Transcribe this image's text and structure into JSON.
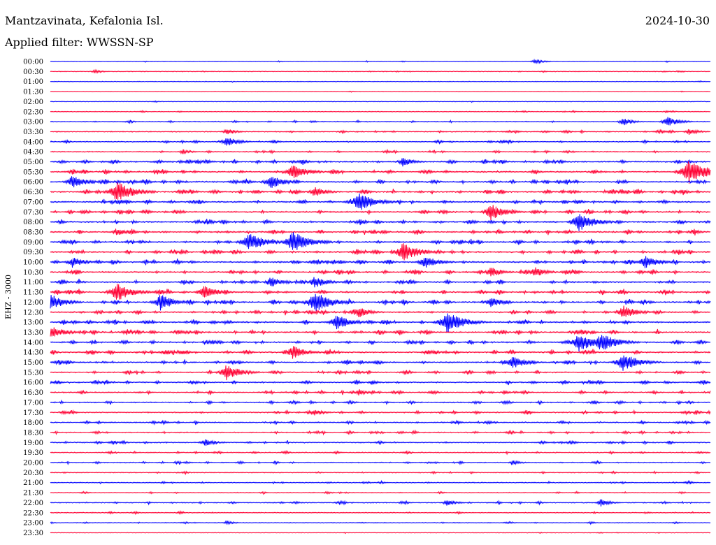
{
  "header": {
    "station": "Mantzavinata, Kefalonia Isl.",
    "date": "2024-10-30",
    "filter": "Applied filter: WWSSN-SP",
    "channel": "EHZ - 3000"
  },
  "colors": {
    "even_rows": "#0000ff",
    "odd_rows": "#ff0033",
    "background": "#ffffff",
    "text": "#000000"
  },
  "chart_data": {
    "type": "line",
    "title": "Mantzavinata, Kefalonia Isl.",
    "ylabel": "EHZ - 3000",
    "xlabel": "",
    "grid": false,
    "legend": "none",
    "y_tick_labels": [
      "00:00",
      "00:30",
      "01:00",
      "01:30",
      "02:00",
      "02:30",
      "03:00",
      "03:30",
      "04:00",
      "04:30",
      "05:00",
      "05:30",
      "06:00",
      "06:30",
      "07:00",
      "07:30",
      "08:00",
      "08:30",
      "09:00",
      "09:30",
      "10:00",
      "10:30",
      "11:00",
      "11:30",
      "12:00",
      "12:30",
      "13:00",
      "13:30",
      "14:00",
      "14:30",
      "15:00",
      "15:30",
      "16:00",
      "16:30",
      "17:00",
      "17:30",
      "18:00",
      "18:30",
      "19:00",
      "19:30",
      "20:00",
      "20:30",
      "21:00",
      "21:30",
      "22:00",
      "22:30",
      "23:00",
      "23:30"
    ],
    "row_activity": [
      0.1,
      0.2,
      0.05,
      0.05,
      0.05,
      0.2,
      0.4,
      0.5,
      0.5,
      0.5,
      0.9,
      1.0,
      1.0,
      1.0,
      1.0,
      1.0,
      1.0,
      1.0,
      1.0,
      1.0,
      1.0,
      1.0,
      1.0,
      1.0,
      1.0,
      1.0,
      1.0,
      1.0,
      1.0,
      1.0,
      0.9,
      0.8,
      0.8,
      0.75,
      0.7,
      0.7,
      0.65,
      0.6,
      0.6,
      0.5,
      0.5,
      0.3,
      0.4,
      0.3,
      0.5,
      0.3,
      0.25,
      0.1
    ],
    "events": [
      {
        "row": 0,
        "minute": 22,
        "amplitude": 4
      },
      {
        "row": 1,
        "minute": 2,
        "amplitude": 3
      },
      {
        "row": 6,
        "minute": 26,
        "amplitude": 6
      },
      {
        "row": 6,
        "minute": 28,
        "amplitude": 8
      },
      {
        "row": 7,
        "minute": 8,
        "amplitude": 5
      },
      {
        "row": 7,
        "minute": 29,
        "amplitude": 5
      },
      {
        "row": 8,
        "minute": 8,
        "amplitude": 8
      },
      {
        "row": 9,
        "minute": 6,
        "amplitude": 4
      },
      {
        "row": 10,
        "minute": 16,
        "amplitude": 7
      },
      {
        "row": 11,
        "minute": 11,
        "amplitude": 12
      },
      {
        "row": 11,
        "minute": 29,
        "amplitude": 18
      },
      {
        "row": 12,
        "minute": 1,
        "amplitude": 10
      },
      {
        "row": 12,
        "minute": 10,
        "amplitude": 10
      },
      {
        "row": 13,
        "minute": 3,
        "amplitude": 16
      },
      {
        "row": 13,
        "minute": 12,
        "amplitude": 8
      },
      {
        "row": 14,
        "minute": 14,
        "amplitude": 14
      },
      {
        "row": 15,
        "minute": 20,
        "amplitude": 12
      },
      {
        "row": 16,
        "minute": 24,
        "amplitude": 14
      },
      {
        "row": 17,
        "minute": 3,
        "amplitude": 6
      },
      {
        "row": 18,
        "minute": 9,
        "amplitude": 14
      },
      {
        "row": 18,
        "minute": 11,
        "amplitude": 16
      },
      {
        "row": 19,
        "minute": 16,
        "amplitude": 14
      },
      {
        "row": 20,
        "minute": 1,
        "amplitude": 8
      },
      {
        "row": 20,
        "minute": 17,
        "amplitude": 10
      },
      {
        "row": 20,
        "minute": 27,
        "amplitude": 10
      },
      {
        "row": 21,
        "minute": 20,
        "amplitude": 8
      },
      {
        "row": 21,
        "minute": 22,
        "amplitude": 8
      },
      {
        "row": 22,
        "minute": 10,
        "amplitude": 8
      },
      {
        "row": 22,
        "minute": 12,
        "amplitude": 9
      },
      {
        "row": 23,
        "minute": 3,
        "amplitude": 14
      },
      {
        "row": 23,
        "minute": 7,
        "amplitude": 10
      },
      {
        "row": 24,
        "minute": 0,
        "amplitude": 12
      },
      {
        "row": 24,
        "minute": 5,
        "amplitude": 12
      },
      {
        "row": 24,
        "minute": 12,
        "amplitude": 16
      },
      {
        "row": 24,
        "minute": 20,
        "amplitude": 8
      },
      {
        "row": 25,
        "minute": 14,
        "amplitude": 8
      },
      {
        "row": 25,
        "minute": 26,
        "amplitude": 10
      },
      {
        "row": 26,
        "minute": 13,
        "amplitude": 12
      },
      {
        "row": 26,
        "minute": 18,
        "amplitude": 16
      },
      {
        "row": 27,
        "minute": 0,
        "amplitude": 10
      },
      {
        "row": 28,
        "minute": 24,
        "amplitude": 14
      },
      {
        "row": 28,
        "minute": 25,
        "amplitude": 14
      },
      {
        "row": 29,
        "minute": 11,
        "amplitude": 10
      },
      {
        "row": 30,
        "minute": 21,
        "amplitude": 10
      },
      {
        "row": 30,
        "minute": 26,
        "amplitude": 14
      },
      {
        "row": 31,
        "minute": 8,
        "amplitude": 12
      },
      {
        "row": 33,
        "minute": 14,
        "amplitude": 5
      },
      {
        "row": 35,
        "minute": 12,
        "amplitude": 5
      },
      {
        "row": 38,
        "minute": 7,
        "amplitude": 6
      },
      {
        "row": 40,
        "minute": 21,
        "amplitude": 4
      },
      {
        "row": 44,
        "minute": 18,
        "amplitude": 5
      },
      {
        "row": 44,
        "minute": 25,
        "amplitude": 6
      },
      {
        "row": 46,
        "minute": 8,
        "amplitude": 3
      }
    ]
  }
}
